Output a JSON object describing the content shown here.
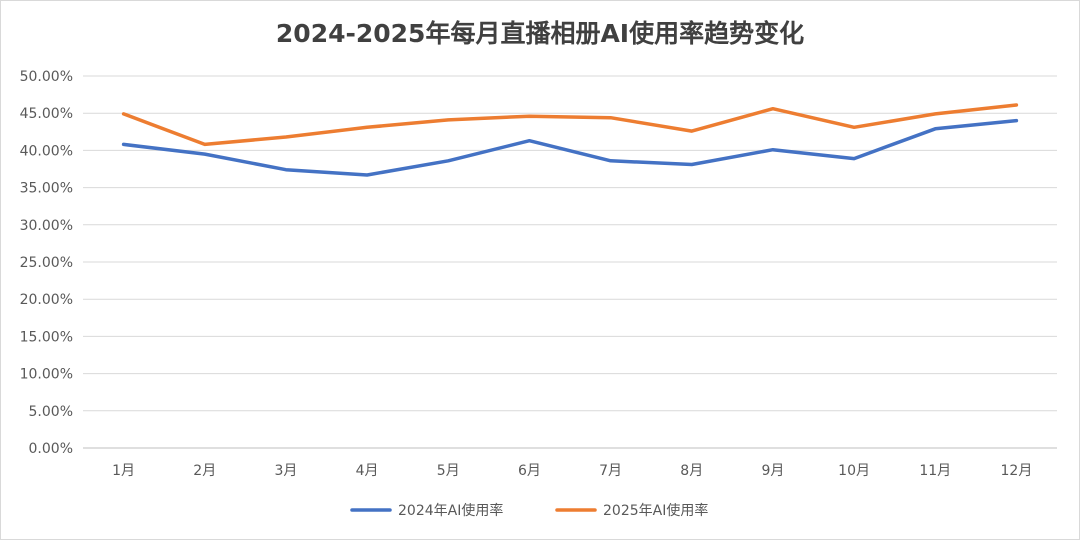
{
  "chart_data": {
    "type": "line",
    "title": "2024-2025年每月直播相册AI使用率趋势变化",
    "xlabel": "",
    "ylabel": "",
    "categories": [
      "1月",
      "2月",
      "3月",
      "4月",
      "5月",
      "6月",
      "7月",
      "8月",
      "9月",
      "10月",
      "11月",
      "12月"
    ],
    "series": [
      {
        "name": "2024年AI使用率",
        "color": "#4472c4",
        "values": [
          40.8,
          39.5,
          37.4,
          36.7,
          38.6,
          41.3,
          38.6,
          38.1,
          40.1,
          38.9,
          42.9,
          44.0
        ]
      },
      {
        "name": "2025年AI使用率",
        "color": "#ed7d31",
        "values": [
          44.9,
          40.8,
          41.8,
          43.1,
          44.1,
          44.6,
          44.4,
          42.6,
          45.6,
          43.1,
          44.9,
          46.1
        ]
      }
    ],
    "yticks": [
      "0.00%",
      "5.00%",
      "10.00%",
      "15.00%",
      "20.00%",
      "25.00%",
      "30.00%",
      "35.00%",
      "40.00%",
      "45.00%",
      "50.00%"
    ],
    "ylim": [
      0,
      50
    ],
    "grid": true,
    "legend": "bottom"
  }
}
